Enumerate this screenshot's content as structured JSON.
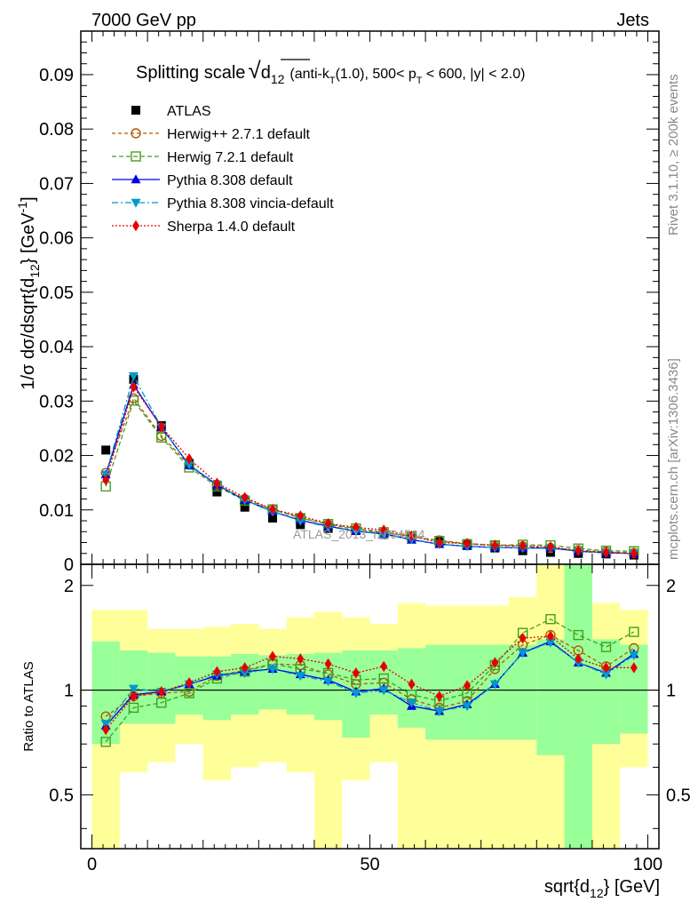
{
  "header": {
    "left": "7000 GeV pp",
    "right": "Jets"
  },
  "side_text": {
    "rivet": "Rivet 3.1.10, ≥ 200k events",
    "mcplots": "mcplots.cern.ch [arXiv:1306.3436]"
  },
  "watermark": "ATLAS_2013_I1094564",
  "colors": {
    "ratio_band_inner": "#99ff99",
    "ratio_band_outer": "#ffff99"
  },
  "chart_data": [
    {
      "id": "main",
      "type": "line",
      "title": "Splitting scale √d12 (anti-kT(1.0), 500< pT < 600, |y| < 2.0)",
      "title_parts": {
        "prefix": "Splitting scale",
        "var": "d",
        "var_sub": "12",
        "cond1": "(anti-k",
        "cond1_sub": "T",
        "cond2": "(1.0), 500< p",
        "cond2_sub": "T",
        "cond3": " < 600, |y| < 2.0)"
      },
      "ylabel": "1/σ dσ/dsqrt{d12} [GeV⁻¹]",
      "ylabel_parts": {
        "a": "1/σ dσ/dsqrt{d",
        "sub": "12",
        "b": "} [GeV",
        "sup": "-1",
        "c": "]"
      },
      "xlim": [
        -2,
        102
      ],
      "ylim": [
        0,
        0.098
      ],
      "y_ticks": [
        0,
        0.01,
        0.02,
        0.03,
        0.04,
        0.05,
        0.06,
        0.07,
        0.08,
        0.09
      ],
      "y_tick_labels": [
        "0",
        "0.01",
        "0.02",
        "0.03",
        "0.04",
        "0.05",
        "0.06",
        "0.07",
        "0.08",
        "0.09"
      ],
      "x": [
        2.5,
        7.5,
        12.5,
        17.5,
        22.5,
        27.5,
        32.5,
        37.5,
        42.5,
        47.5,
        52.5,
        57.5,
        62.5,
        67.5,
        72.5,
        77.5,
        82.5,
        87.5,
        92.5,
        97.5
      ],
      "series": [
        {
          "name": "ATLAS",
          "color": "#000000",
          "marker": "square-filled",
          "dash": "none",
          "values": [
            0.021,
            0.034,
            0.0255,
            0.0185,
            0.0133,
            0.0105,
            0.0085,
            0.0073,
            0.0066,
            0.0062,
            0.0055,
            0.005,
            0.0042,
            0.0037,
            0.003,
            0.0025,
            0.0022,
            0.002,
            0.0019,
            0.0017
          ]
        },
        {
          "name": "Herwig++ 2.7.1 default",
          "color": "#b35900",
          "marker": "circle-open",
          "dash": "4,3",
          "values": [
            0.0168,
            0.0305,
            0.0236,
            0.0183,
            0.0146,
            0.012,
            0.0101,
            0.0086,
            0.0073,
            0.0064,
            0.0058,
            0.0051,
            0.0044,
            0.0038,
            0.0035,
            0.0033,
            0.003,
            0.0026,
            0.0023,
            0.0021
          ]
        },
        {
          "name": "Herwig 7.2.1 default",
          "color": "#449e1f",
          "marker": "square-open",
          "dash": "5,3",
          "values": [
            0.0143,
            0.0301,
            0.0233,
            0.0178,
            0.0143,
            0.0117,
            0.0101,
            0.0085,
            0.0074,
            0.0066,
            0.0059,
            0.0051,
            0.0043,
            0.0037,
            0.0035,
            0.0036,
            0.0035,
            0.0029,
            0.0025,
            0.0024
          ]
        },
        {
          "name": "Pythia 8.308 default",
          "color": "#0000e6",
          "marker": "triangle-up",
          "dash": "none",
          "values": [
            0.0165,
            0.033,
            0.0252,
            0.0182,
            0.0146,
            0.0118,
            0.0097,
            0.0081,
            0.007,
            0.0061,
            0.0056,
            0.0045,
            0.0037,
            0.0033,
            0.0031,
            0.003,
            0.003,
            0.0024,
            0.0021,
            0.002
          ]
        },
        {
          "name": "Pythia 8.308 vincia-default",
          "color": "#0099cc",
          "marker": "triangle-down",
          "dash": "7,3,2,3",
          "values": [
            0.0165,
            0.0346,
            0.0252,
            0.0183,
            0.0147,
            0.0118,
            0.0097,
            0.008,
            0.0069,
            0.0061,
            0.0055,
            0.0046,
            0.0037,
            0.0033,
            0.0031,
            0.003,
            0.0029,
            0.0024,
            0.0021,
            0.002
          ]
        },
        {
          "name": "Sherpa 1.4.0 default",
          "color": "#e60000",
          "marker": "diamond",
          "dash": "2,2",
          "values": [
            0.0155,
            0.0326,
            0.0253,
            0.0194,
            0.0149,
            0.0123,
            0.0101,
            0.0089,
            0.0075,
            0.0068,
            0.0063,
            0.0052,
            0.004,
            0.0038,
            0.0035,
            0.0034,
            0.0032,
            0.0025,
            0.0022,
            0.002
          ]
        }
      ]
    },
    {
      "id": "ratio",
      "type": "line",
      "ylabel": "Ratio to ATLAS",
      "xlabel": "sqrt{d12} [GeV]",
      "xlabel_parts": {
        "a": "sqrt{d",
        "sub": "12",
        "b": "} [GeV]"
      },
      "xlim": [
        -2,
        102
      ],
      "ylim": [
        0.35,
        2.3
      ],
      "y_ticks": [
        0.5,
        1,
        2
      ],
      "y_tick_labels": [
        "0.5",
        "1",
        "2"
      ],
      "x_ticks": [
        0,
        50,
        100
      ],
      "x_tick_labels": [
        "0",
        "50",
        "100"
      ],
      "x_edges": [
        0,
        5,
        10,
        15,
        20,
        25,
        30,
        35,
        40,
        45,
        50,
        55,
        60,
        65,
        70,
        75,
        80,
        85,
        90,
        95,
        100
      ],
      "band_inner": [
        [
          0.7,
          1.38
        ],
        [
          0.8,
          1.3
        ],
        [
          0.8,
          1.28
        ],
        [
          0.85,
          1.25
        ],
        [
          0.82,
          1.25
        ],
        [
          0.85,
          1.27
        ],
        [
          0.88,
          1.26
        ],
        [
          0.85,
          1.27
        ],
        [
          0.82,
          1.28
        ],
        [
          0.73,
          1.3
        ],
        [
          0.85,
          1.3
        ],
        [
          0.78,
          1.32
        ],
        [
          0.72,
          1.35
        ],
        [
          0.72,
          1.35
        ],
        [
          0.72,
          1.35
        ],
        [
          0.72,
          1.35
        ],
        [
          0.65,
          1.4
        ],
        [
          0.35,
          2.3
        ],
        [
          0.7,
          1.4
        ],
        [
          0.75,
          1.35
        ]
      ],
      "band_outer": [
        [
          0.35,
          1.7
        ],
        [
          0.58,
          1.7
        ],
        [
          0.62,
          1.5
        ],
        [
          0.7,
          1.5
        ],
        [
          0.55,
          1.52
        ],
        [
          0.6,
          1.55
        ],
        [
          0.62,
          1.5
        ],
        [
          0.58,
          1.62
        ],
        [
          0.35,
          1.68
        ],
        [
          0.55,
          1.62
        ],
        [
          0.62,
          1.55
        ],
        [
          0.35,
          1.78
        ],
        [
          0.35,
          1.75
        ],
        [
          0.35,
          1.75
        ],
        [
          0.35,
          1.75
        ],
        [
          0.35,
          1.85
        ],
        [
          0.35,
          2.3
        ],
        [
          0.35,
          2.3
        ],
        [
          0.35,
          1.78
        ],
        [
          0.6,
          1.7
        ]
      ],
      "series": [
        {
          "name": "Herwig++ 2.7.1 default",
          "values": [
            0.84,
            0.96,
            0.98,
            0.99,
            1.1,
            1.14,
            1.19,
            1.18,
            1.11,
            1.04,
            1.05,
            0.94,
            0.89,
            0.93,
            1.15,
            1.35,
            1.44,
            1.3,
            1.17,
            1.32
          ]
        },
        {
          "name": "Herwig 7.2.1 default",
          "values": [
            0.71,
            0.89,
            0.92,
            0.98,
            1.08,
            1.13,
            1.19,
            1.15,
            1.12,
            1.07,
            1.08,
            0.97,
            0.93,
            0.98,
            1.18,
            1.46,
            1.6,
            1.44,
            1.33,
            1.47
          ]
        },
        {
          "name": "Pythia 8.308 default",
          "values": [
            0.79,
            0.97,
            0.99,
            1.04,
            1.1,
            1.13,
            1.15,
            1.11,
            1.07,
            0.99,
            1.01,
            0.9,
            0.87,
            0.91,
            1.04,
            1.28,
            1.38,
            1.2,
            1.12,
            1.27
          ]
        },
        {
          "name": "Pythia 8.308 vincia-default",
          "values": [
            0.8,
            1.01,
            0.99,
            1.04,
            1.11,
            1.12,
            1.15,
            1.1,
            1.06,
            0.98,
            1.0,
            0.92,
            0.87,
            0.9,
            1.04,
            1.28,
            1.37,
            1.2,
            1.11,
            1.26
          ]
        },
        {
          "name": "Sherpa 1.4.0 default",
          "values": [
            0.77,
            0.96,
            0.99,
            1.05,
            1.13,
            1.16,
            1.25,
            1.23,
            1.19,
            1.12,
            1.17,
            1.04,
            0.96,
            1.03,
            1.2,
            1.41,
            1.43,
            1.23,
            1.16,
            1.16
          ]
        }
      ]
    }
  ]
}
